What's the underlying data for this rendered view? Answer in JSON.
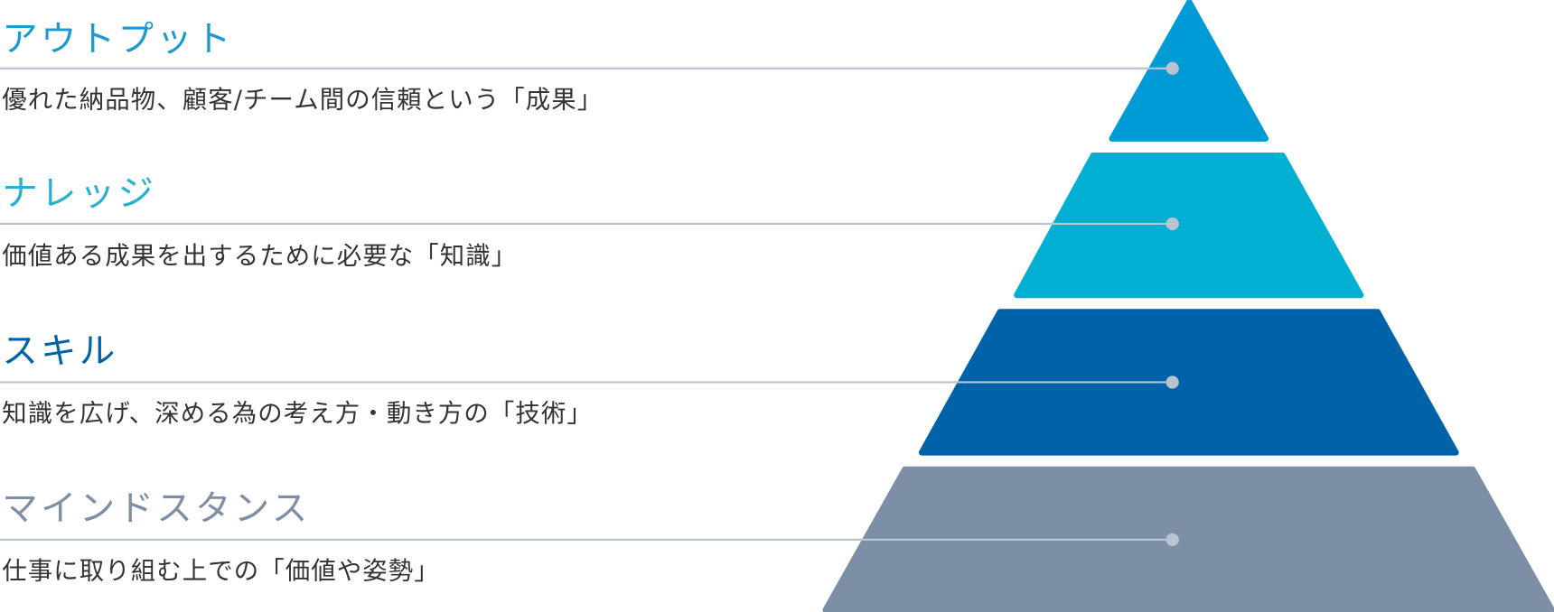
{
  "layers": [
    {
      "title": "アウトプット",
      "description": "優れた納品物、顧客/チーム間の信頼という「成果」"
    },
    {
      "title": "ナレッジ",
      "description": "価値ある成果を出するために必要な「知識」"
    },
    {
      "title": "スキル",
      "description": "知識を広げ、深める為の考え方・動き方の「技術」"
    },
    {
      "title": "マインドスタンス",
      "description": "仕事に取り組む上での「価値や姿勢」"
    }
  ]
}
